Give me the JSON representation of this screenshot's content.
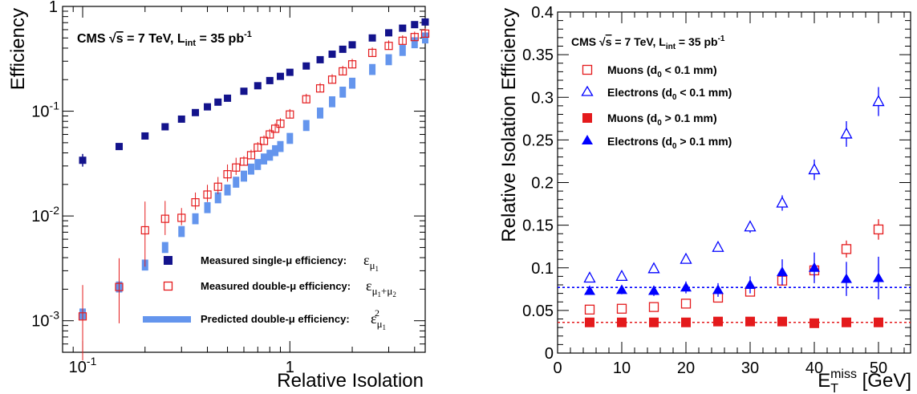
{
  "chart_data": [
    {
      "type": "scatter",
      "xscale": "log",
      "yscale": "log",
      "xlim": [
        0.08,
        4.5
      ],
      "ylim": [
        0.0005,
        1.0
      ],
      "xlabel": "Relative Isolation",
      "ylabel": "Efficiency",
      "xticks": [
        {
          "v": 0.1,
          "label": "10",
          "exp": "-1"
        },
        {
          "v": 1,
          "label": "1",
          "exp": ""
        }
      ],
      "yticks": [
        {
          "v": 0.001,
          "label": "10",
          "exp": "-3"
        },
        {
          "v": 0.01,
          "label": "10",
          "exp": "-2"
        },
        {
          "v": 0.1,
          "label": "10",
          "exp": "-1"
        },
        {
          "v": 1,
          "label": "1",
          "exp": ""
        }
      ],
      "annotation": {
        "prefix": "CMS ",
        "sqrt": "√",
        "s": "s",
        "energy": " = 7 TeV,  L",
        "lumi_sub": "int",
        "lumi": " = 35 pb",
        "lumi_sup": "-1"
      },
      "legend_position": "bottom-right",
      "series": [
        {
          "key": "single",
          "legend": "Measured single-μ efficiency:",
          "formula": {
            "base": "ε",
            "sub": "μ",
            "subsub": "1",
            "sup": ""
          },
          "color": "#13138c",
          "marker": "filled-square",
          "x": [
            0.1,
            0.15,
            0.2,
            0.25,
            0.3,
            0.35,
            0.4,
            0.45,
            0.5,
            0.6,
            0.7,
            0.8,
            0.9,
            1.0,
            1.2,
            1.4,
            1.6,
            1.8,
            2.0,
            2.5,
            3.0,
            3.5,
            4.0,
            4.5
          ],
          "y": [
            0.034,
            0.046,
            0.058,
            0.071,
            0.084,
            0.097,
            0.11,
            0.122,
            0.133,
            0.155,
            0.175,
            0.196,
            0.215,
            0.235,
            0.27,
            0.31,
            0.35,
            0.39,
            0.43,
            0.5,
            0.56,
            0.62,
            0.67,
            0.71
          ]
        },
        {
          "key": "double",
          "legend": "Measured double-μ efficiency:",
          "formula": {
            "base": "ε",
            "sub": "μ",
            "subsub": "1",
            "sup": "",
            "plus": "+μ",
            "plussub": "2"
          },
          "color": "#e41a1c",
          "marker": "open-square",
          "x": [
            0.1,
            0.15,
            0.2,
            0.25,
            0.3,
            0.35,
            0.4,
            0.45,
            0.5,
            0.55,
            0.6,
            0.65,
            0.7,
            0.75,
            0.8,
            0.85,
            0.9,
            1.0,
            1.2,
            1.4,
            1.6,
            1.8,
            2.0,
            2.5,
            3.0,
            3.5,
            4.0,
            4.5
          ],
          "y": [
            0.0011,
            0.0021,
            0.0073,
            0.0094,
            0.0096,
            0.0135,
            0.016,
            0.019,
            0.025,
            0.029,
            0.033,
            0.038,
            0.045,
            0.052,
            0.06,
            0.068,
            0.076,
            0.093,
            0.13,
            0.165,
            0.2,
            0.24,
            0.28,
            0.36,
            0.42,
            0.47,
            0.51,
            0.55
          ]
        },
        {
          "key": "predicted",
          "legend": "Predicted double-μ  efficiency:",
          "formula": {
            "base": "ε",
            "sub": "μ",
            "subsub": "1",
            "sup": "2"
          },
          "color": "#6495ed",
          "marker": "thick-bar",
          "x": [
            0.1,
            0.15,
            0.2,
            0.25,
            0.3,
            0.35,
            0.4,
            0.45,
            0.5,
            0.55,
            0.6,
            0.65,
            0.7,
            0.75,
            0.8,
            0.85,
            0.9,
            1.0,
            1.2,
            1.4,
            1.6,
            1.8,
            2.0,
            2.5,
            3.0,
            3.5,
            4.0,
            4.5
          ],
          "y": [
            0.00116,
            0.0021,
            0.0034,
            0.005,
            0.0071,
            0.0094,
            0.012,
            0.0149,
            0.0177,
            0.021,
            0.024,
            0.028,
            0.031,
            0.035,
            0.038,
            0.042,
            0.046,
            0.055,
            0.073,
            0.096,
            0.123,
            0.152,
            0.185,
            0.25,
            0.31,
            0.38,
            0.45,
            0.5
          ]
        }
      ]
    },
    {
      "type": "scatter",
      "xlim": [
        0,
        55
      ],
      "ylim": [
        0,
        0.4
      ],
      "xlabel": "E",
      "xlabel_sub": "T",
      "xlabel_sup": "miss",
      "xlabel_unit": " [GeV]",
      "ylabel": "Relative Isolation Efficiency",
      "xticks": [
        0,
        10,
        20,
        30,
        40,
        50
      ],
      "yticks": [
        {
          "v": 0,
          "label": "0"
        },
        {
          "v": 0.05,
          "label": "0.05"
        },
        {
          "v": 0.1,
          "label": "0.1"
        },
        {
          "v": 0.15,
          "label": "0.15"
        },
        {
          "v": 0.2,
          "label": "0.2"
        },
        {
          "v": 0.25,
          "label": "0.25"
        },
        {
          "v": 0.3,
          "label": "0.3"
        },
        {
          "v": 0.35,
          "label": "0.35"
        },
        {
          "v": 0.4,
          "label": "0.4"
        }
      ],
      "annotation": {
        "prefix": "CMS ",
        "sqrt": "√",
        "s": "s",
        "energy": " = 7 TeV,  L",
        "lumi_sub": "int",
        "lumi": " = 35 pb",
        "lumi_sup": "-1"
      },
      "legend_position": "top-left",
      "reference_lines": [
        {
          "y": 0.077,
          "color": "#0000ff"
        },
        {
          "y": 0.036,
          "color": "#e41a1c"
        }
      ],
      "series": [
        {
          "key": "mu-lo",
          "legend_prefix": "Muons (d",
          "legend_sub": "0",
          "legend_suffix": " < 0.1 mm)",
          "color": "#e41a1c",
          "marker": "open-square",
          "x": [
            5,
            10,
            15,
            20,
            25,
            30,
            35,
            40,
            45,
            50
          ],
          "y": [
            0.051,
            0.052,
            0.054,
            0.058,
            0.065,
            0.072,
            0.085,
            0.097,
            0.122,
            0.145
          ],
          "err": [
            0.003,
            0.003,
            0.003,
            0.003,
            0.004,
            0.005,
            0.006,
            0.008,
            0.01,
            0.012
          ]
        },
        {
          "key": "el-lo",
          "legend_prefix": "Electrons (d",
          "legend_sub": "0",
          "legend_suffix": " < 0.1 mm)",
          "color": "#0000ff",
          "marker": "open-triangle",
          "x": [
            5,
            10,
            15,
            20,
            25,
            30,
            35,
            40,
            45,
            50
          ],
          "y": [
            0.088,
            0.09,
            0.099,
            0.11,
            0.124,
            0.148,
            0.176,
            0.215,
            0.257,
            0.295
          ],
          "err": [
            0.003,
            0.003,
            0.004,
            0.004,
            0.005,
            0.007,
            0.009,
            0.012,
            0.015,
            0.017
          ]
        },
        {
          "key": "mu-hi",
          "legend_prefix": "Muons (d",
          "legend_sub": "0",
          "legend_suffix": " > 0.1 mm)",
          "color": "#e41a1c",
          "marker": "filled-square",
          "x": [
            5,
            10,
            15,
            20,
            25,
            30,
            35,
            40,
            45,
            50
          ],
          "y": [
            0.036,
            0.036,
            0.036,
            0.036,
            0.037,
            0.037,
            0.037,
            0.035,
            0.036,
            0.036
          ],
          "err": [
            0.001,
            0.001,
            0.001,
            0.001,
            0.001,
            0.001,
            0.001,
            0.001,
            0.001,
            0.001
          ]
        },
        {
          "key": "el-hi",
          "legend_prefix": "Electrons (d",
          "legend_sub": "0",
          "legend_suffix": " > 0.1 mm)",
          "color": "#0000ff",
          "marker": "filled-triangle",
          "x": [
            5,
            10,
            15,
            20,
            25,
            30,
            35,
            40,
            45,
            50
          ],
          "y": [
            0.073,
            0.074,
            0.073,
            0.077,
            0.074,
            0.08,
            0.095,
            0.1,
            0.087,
            0.088
          ],
          "err": [
            0.004,
            0.005,
            0.006,
            0.007,
            0.008,
            0.01,
            0.015,
            0.018,
            0.02,
            0.025
          ]
        }
      ]
    }
  ]
}
